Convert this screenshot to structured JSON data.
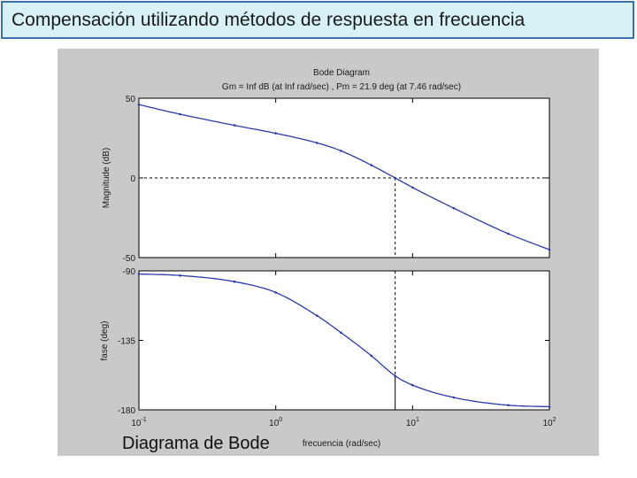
{
  "slide": {
    "title": "Compensación utilizando métodos de respuesta en frecuencia",
    "caption": "Diagrama de Bode"
  },
  "colors": {
    "title_bg": "#d7f1f7",
    "title_border": "#3f6fb4",
    "figure_bg": "#c9c9c9",
    "plot_bg": "#ffffff",
    "curve": "#2b3aa8"
  },
  "chart_data": {
    "type": "line",
    "title": "Bode Diagram",
    "subtitle": "Gm = Inf dB (at Inf rad/sec) ,  Pm = 21.9 deg (at 7.46 rad/sec)",
    "xlabel": "frecuencia  (rad/sec)",
    "xscale": "log",
    "xlim": [
      0.1,
      100
    ],
    "xticks": [
      {
        "value": 0.1,
        "base": "10",
        "exp": "-1"
      },
      {
        "value": 1,
        "base": "10",
        "exp": "0"
      },
      {
        "value": 10,
        "base": "10",
        "exp": "1"
      },
      {
        "value": 100,
        "base": "10",
        "exp": "2"
      }
    ],
    "grid": false,
    "crossover": {
      "frequency": 7.46,
      "magnitude": 0,
      "phase": -158.1
    },
    "magnitude": {
      "ylabel": "Magnitude (dB)",
      "ylim": [
        -50,
        50
      ],
      "yticks": [
        {
          "value": 50,
          "label": "50"
        },
        {
          "value": 0,
          "label": "0"
        },
        {
          "value": -50,
          "label": "-50"
        }
      ],
      "x": [
        0.1,
        0.2,
        0.5,
        1,
        2,
        3,
        5,
        7.46,
        10,
        20,
        50,
        100
      ],
      "y": [
        46,
        40,
        33,
        28,
        22,
        17,
        8,
        0,
        -6,
        -19,
        -35,
        -45
      ]
    },
    "phase": {
      "ylabel": "fase (deg)",
      "ylim": [
        -180,
        -90
      ],
      "yticks": [
        {
          "value": -90,
          "label": "-90"
        },
        {
          "value": -135,
          "label": "-135"
        },
        {
          "value": -180,
          "label": "-180"
        }
      ],
      "x": [
        0.1,
        0.2,
        0.5,
        1,
        2,
        3,
        5,
        7.46,
        10,
        20,
        50,
        100
      ],
      "y": [
        -92,
        -93,
        -97,
        -104,
        -119,
        -130,
        -145,
        -158,
        -164,
        -172,
        -177,
        -178
      ]
    }
  }
}
